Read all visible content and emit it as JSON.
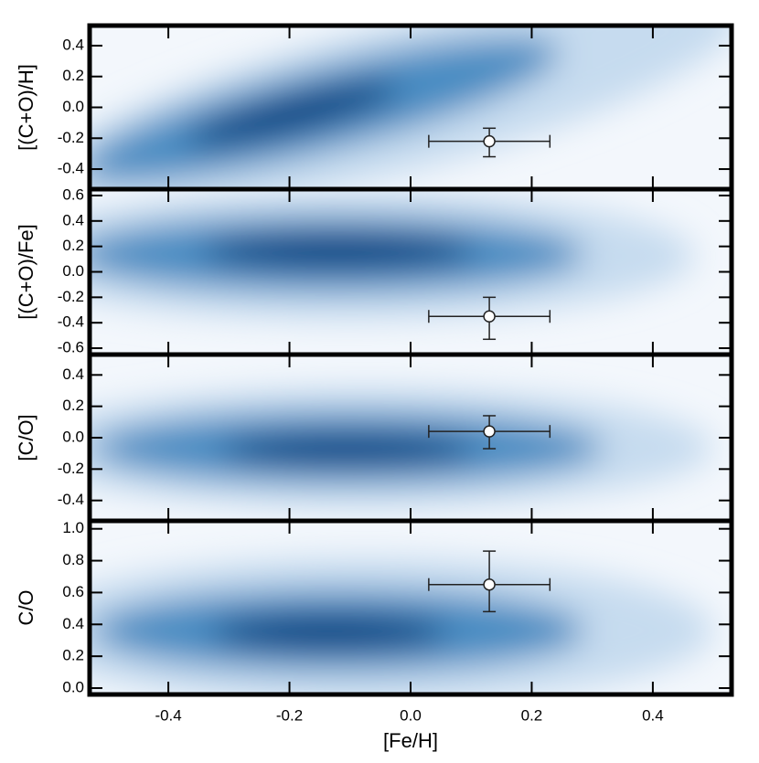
{
  "chart_data": [
    {
      "type": "errorpoint",
      "ylabel": "[(C+O)/H]",
      "xlim": [
        -0.53,
        0.53
      ],
      "xticks": [
        -0.4,
        -0.2,
        {
          "value": 0,
          "label": "0.0"
        },
        0.2,
        0.4
      ],
      "ylim": [
        -0.53,
        0.53
      ],
      "yticks": [
        -0.4,
        -0.2,
        {
          "value": 0,
          "label": "0.0"
        },
        0.2,
        0.4
      ],
      "x": [
        0.13
      ],
      "xerr": [
        0.1
      ],
      "y": [
        -0.22
      ],
      "yerr_minus": [
        0.1
      ],
      "yerr_plus": [
        0.085
      ]
    },
    {
      "type": "errorpoint",
      "ylabel": "[(C+O)/Fe]",
      "xlim": [
        -0.53,
        0.53
      ],
      "xticks": [
        -0.4,
        -0.2,
        {
          "value": 0,
          "label": "0.0"
        },
        0.2,
        0.4
      ],
      "ylim": [
        -0.65,
        0.65
      ],
      "yticks": [
        -0.6,
        -0.4,
        -0.2,
        {
          "value": 0,
          "label": "0.0"
        },
        0.2,
        0.4,
        0.6
      ],
      "x": [
        0.13
      ],
      "xerr": [
        0.1
      ],
      "y": [
        -0.35
      ],
      "yerr_minus": [
        0.18
      ],
      "yerr_plus": [
        0.15
      ]
    },
    {
      "type": "errorpoint",
      "ylabel": "[C/O]",
      "xlim": [
        -0.53,
        0.53
      ],
      "xticks": [
        -0.4,
        -0.2,
        {
          "value": 0,
          "label": "0.0"
        },
        0.2,
        0.4
      ],
      "ylim": [
        -0.53,
        0.53
      ],
      "yticks": [
        -0.4,
        -0.2,
        {
          "value": 0,
          "label": "0.0"
        },
        0.2,
        0.4
      ],
      "x": [
        0.13
      ],
      "xerr": [
        0.1
      ],
      "y": [
        0.04
      ],
      "yerr_minus": [
        0.11
      ],
      "yerr_plus": [
        0.1
      ]
    },
    {
      "type": "errorpoint",
      "ylabel": "C/O",
      "xlabel": "[Fe/H]",
      "xlim": [
        -0.53,
        0.53
      ],
      "xticks": [
        -0.4,
        -0.2,
        {
          "value": 0,
          "label": "0.0"
        },
        0.2,
        0.4
      ],
      "ylim": [
        -0.04,
        1.05
      ],
      "yticks": [
        {
          "value": 0,
          "label": "0.0"
        },
        0.2,
        0.4,
        0.6,
        0.8,
        {
          "value": 1,
          "label": "1.0"
        }
      ],
      "x": [
        0.13
      ],
      "xerr": [
        0.1
      ],
      "y": [
        0.65
      ],
      "yerr_minus": [
        0.17
      ],
      "yerr_plus": [
        0.21
      ]
    }
  ]
}
